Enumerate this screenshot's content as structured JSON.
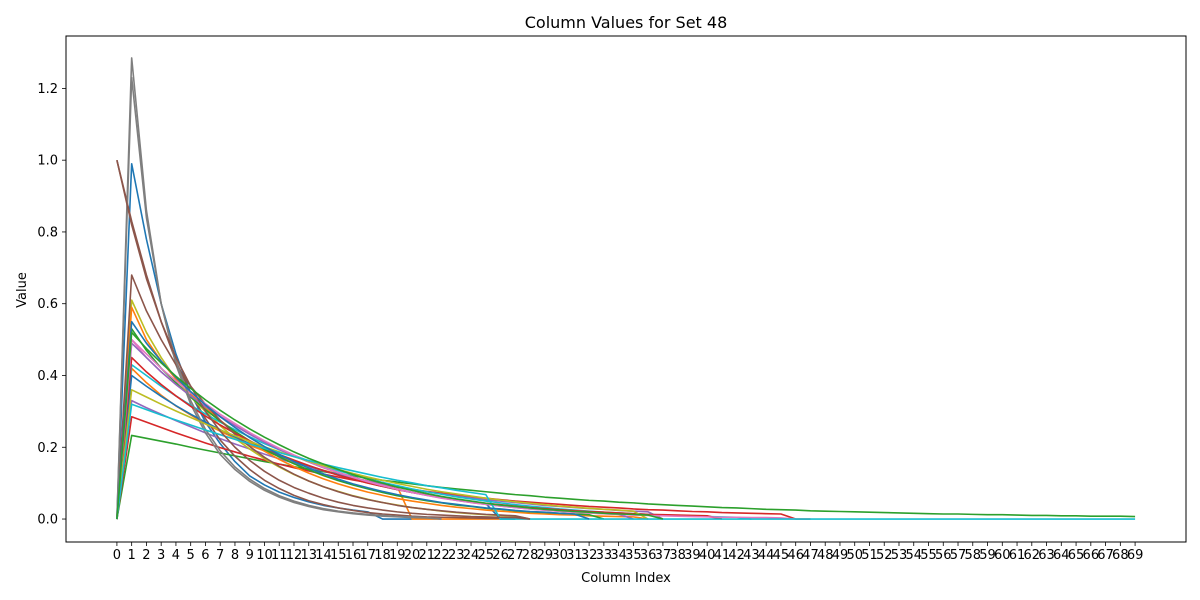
{
  "chart_data": {
    "type": "line",
    "title": "Column Values for Set 48",
    "xlabel": "Column Index",
    "ylabel": "Value",
    "xlim": [
      -3.45,
      72.45
    ],
    "ylim": [
      -0.064,
      1.346
    ],
    "grid": false,
    "legend": "none",
    "x_ticks": [
      0,
      1,
      2,
      3,
      4,
      5,
      6,
      7,
      8,
      9,
      10,
      11,
      12,
      13,
      14,
      15,
      16,
      17,
      18,
      19,
      20,
      21,
      22,
      23,
      24,
      25,
      26,
      27,
      28,
      29,
      30,
      31,
      32,
      33,
      34,
      35,
      36,
      37,
      38,
      39,
      40,
      41,
      42,
      43,
      44,
      45,
      46,
      47,
      48,
      49,
      50,
      51,
      52,
      53,
      54,
      55,
      56,
      57,
      58,
      59,
      60,
      61,
      62,
      63,
      64,
      65,
      66,
      67,
      68,
      69
    ],
    "y_ticks": [
      0.0,
      0.2,
      0.4,
      0.6,
      0.8,
      1.0,
      1.2
    ],
    "y_tick_labels": [
      "0.0",
      "0.2",
      "0.4",
      "0.6",
      "0.8",
      "1.0",
      "1.2"
    ],
    "series": [
      {
        "color": "#1f77b4",
        "values": [
          0.0,
          0.99,
          0.78,
          0.6,
          0.46,
          0.35,
          0.27,
          0.21,
          0.16,
          0.12,
          0.095,
          0.075,
          0.06,
          0.048,
          0.038,
          0.031,
          0.025,
          0.02,
          0.0,
          0.0,
          0.0
        ]
      },
      {
        "color": "#ff7f0e",
        "values": [
          0.0,
          0.42,
          0.38,
          0.345,
          0.315,
          0.29,
          0.265,
          0.245,
          0.225,
          0.205,
          0.19,
          0.175,
          0.16,
          0.148,
          0.136,
          0.125,
          0.115,
          0.106,
          0.098,
          0.09,
          0.0,
          0.0,
          0.0,
          0.0,
          0.0,
          0.0,
          0.0
        ]
      },
      {
        "color": "#2ca02c",
        "values": [
          0.0,
          0.233,
          0.225,
          0.217,
          0.209,
          0.2,
          0.192,
          0.184,
          0.176,
          0.168,
          0.16,
          0.153,
          0.146,
          0.139,
          0.132,
          0.126,
          0.12,
          0.114,
          0.108,
          0.103,
          0.098,
          0.093,
          0.088,
          0.084,
          0.08,
          0.076,
          0.072,
          0.068,
          0.065,
          0.061,
          0.058,
          0.055,
          0.052,
          0.05,
          0.047,
          0.045,
          0.042,
          0.04,
          0.038,
          0.036,
          0.034,
          0.032,
          0.031,
          0.029,
          0.027,
          0.026,
          0.025,
          0.023,
          0.022,
          0.021,
          0.02,
          0.019,
          0.018,
          0.017,
          0.016,
          0.015,
          0.014,
          0.014,
          0.013,
          0.012,
          0.012,
          0.011,
          0.01,
          0.01,
          0.009,
          0.009,
          0.008,
          0.008,
          0.008,
          0.007
        ]
      },
      {
        "color": "#d62728",
        "values": [
          0.0,
          0.285,
          0.27,
          0.255,
          0.24,
          0.226,
          0.212,
          0.199,
          0.187,
          0.175,
          0.164,
          0.153,
          0.143,
          0.134,
          0.125,
          0.117,
          0.109,
          0.102,
          0.095,
          0.089,
          0.083,
          0.077,
          0.072,
          0.067,
          0.062,
          0.058,
          0.054,
          0.05,
          0.047,
          0.044,
          0.041,
          0.038,
          0.035,
          0.033,
          0.031,
          0.028,
          0.026,
          0.025,
          0.023,
          0.021,
          0.02,
          0.018,
          0.017,
          0.016,
          0.015,
          0.014,
          0.0,
          0.0
        ]
      },
      {
        "color": "#9467bd",
        "values": [
          0.0,
          0.33,
          0.31,
          0.292,
          0.274,
          0.257,
          0.24,
          0.224,
          0.209,
          0.195,
          0.181,
          0.168,
          0.156,
          0.145,
          0.134,
          0.124,
          0.115,
          0.106,
          0.098,
          0.09,
          0.083,
          0.076,
          0.07,
          0.064,
          0.059,
          0.054,
          0.05,
          0.046,
          0.042,
          0.038,
          0.035,
          0.032,
          0.029,
          0.027,
          0.024,
          0.022,
          0.02,
          0.0
        ]
      },
      {
        "color": "#8c564b",
        "values": [
          1.0,
          0.83,
          0.68,
          0.55,
          0.44,
          0.35,
          0.28,
          0.22,
          0.175,
          0.138,
          0.108,
          0.085,
          0.066,
          0.051,
          0.04,
          0.031,
          0.024,
          0.018,
          0.014,
          0.011,
          0.008,
          0.006,
          0.005,
          0.004,
          0.003,
          0.002,
          0.002,
          0.0
        ]
      },
      {
        "color": "#e377c2",
        "values": [
          0.0,
          0.5,
          0.45,
          0.41,
          0.375,
          0.343,
          0.314,
          0.287,
          0.262,
          0.239,
          0.217,
          0.197,
          0.178,
          0.161,
          0.145,
          0.13,
          0.117,
          0.105,
          0.094,
          0.084,
          0.075,
          0.067,
          0.059,
          0.053,
          0.047,
          0.042,
          0.037,
          0.033,
          0.029,
          0.026,
          0.023,
          0.02,
          0.018,
          0.016,
          0.014,
          0.012,
          0.011,
          0.01,
          0.009,
          0.008,
          0.007,
          0.0
        ]
      },
      {
        "color": "#7f7f7f",
        "values": [
          0.0,
          1.285,
          0.86,
          0.6,
          0.43,
          0.32,
          0.24,
          0.18,
          0.138,
          0.105,
          0.08,
          0.061,
          0.046,
          0.035,
          0.026,
          0.02,
          0.015,
          0.011,
          0.008,
          0.006,
          0.004,
          0.003,
          0.0
        ]
      },
      {
        "color": "#bcbd22",
        "values": [
          0.0,
          0.61,
          0.52,
          0.45,
          0.39,
          0.34,
          0.3,
          0.26,
          0.225,
          0.195,
          0.168,
          0.145,
          0.124,
          0.106,
          0.09,
          0.077,
          0.065,
          0.055,
          0.046,
          0.039,
          0.032,
          0.027,
          0.022,
          0.018,
          0.015,
          0.012,
          0.01,
          0.008,
          0.0
        ]
      },
      {
        "color": "#17becf",
        "values": [
          0.0,
          0.43,
          0.4,
          0.37,
          0.343,
          0.317,
          0.293,
          0.27,
          0.249,
          0.229,
          0.21,
          0.193,
          0.177,
          0.162,
          0.148,
          0.135,
          0.123,
          0.112,
          0.102,
          0.093,
          0.084,
          0.076,
          0.069,
          0.062,
          0.056,
          0.05,
          0.045,
          0.04,
          0.036,
          0.032,
          0.028,
          0.025,
          0.022,
          0.019,
          0.017,
          0.015,
          0.013,
          0.011,
          0.01,
          0.008,
          0.007,
          0.006,
          0.005,
          0.0
        ]
      },
      {
        "color": "#1f77b4",
        "values": [
          0.0,
          0.4,
          0.37,
          0.342,
          0.316,
          0.292,
          0.27,
          0.249,
          0.229,
          0.21,
          0.193,
          0.177,
          0.162,
          0.148,
          0.135,
          0.123,
          0.111,
          0.101,
          0.091,
          0.082,
          0.074,
          0.067,
          0.06,
          0.054,
          0.048,
          0.043,
          0.0,
          0.0
        ]
      },
      {
        "color": "#ff7f0e",
        "values": [
          0.0,
          0.59,
          0.5,
          0.44,
          0.39,
          0.35,
          0.31,
          0.275,
          0.243,
          0.214,
          0.189,
          0.166,
          0.146,
          0.128,
          0.112,
          0.098,
          0.086,
          0.075,
          0.066,
          0.057,
          0.05,
          0.044,
          0.038,
          0.033,
          0.029,
          0.025,
          0.022,
          0.019,
          0.016,
          0.014,
          0.012,
          0.011,
          0.009,
          0.008,
          0.007,
          0.006,
          0.0
        ]
      },
      {
        "color": "#2ca02c",
        "values": [
          0.0,
          0.53,
          0.47,
          0.42,
          0.38,
          0.34,
          0.305,
          0.273,
          0.244,
          0.218,
          0.194,
          0.173,
          0.154,
          0.137,
          0.121,
          0.107,
          0.095,
          0.084,
          0.074,
          0.065,
          0.058,
          0.051,
          0.045,
          0.039,
          0.035,
          0.03,
          0.027,
          0.023,
          0.02,
          0.018,
          0.016,
          0.014,
          0.012,
          0.0
        ]
      },
      {
        "color": "#d62728",
        "values": [
          0.0,
          0.45,
          0.41,
          0.375,
          0.343,
          0.314,
          0.287,
          0.262,
          0.239,
          0.218,
          0.198,
          0.18,
          0.164,
          0.149,
          0.135,
          0.122,
          0.111,
          0.1,
          0.091,
          0.082,
          0.074,
          0.067,
          0.06,
          0.054,
          0.049,
          0.044,
          0.04,
          0.036,
          0.032,
          0.029,
          0.026,
          0.023,
          0.021,
          0.019,
          0.017,
          0.015,
          0.013,
          0.012,
          0.011,
          0.01,
          0.009,
          0.0
        ]
      },
      {
        "color": "#9467bd",
        "values": [
          0.0,
          0.49,
          0.45,
          0.41,
          0.375,
          0.343,
          0.313,
          0.285,
          0.26,
          0.236,
          0.214,
          0.194,
          0.176,
          0.159,
          0.143,
          0.129,
          0.116,
          0.104,
          0.093,
          0.083,
          0.074,
          0.066,
          0.059,
          0.052,
          0.046,
          0.041,
          0.036,
          0.032,
          0.028,
          0.025,
          0.022,
          0.019,
          0.017,
          0.015,
          0.013,
          0.0
        ]
      },
      {
        "color": "#8c564b",
        "values": [
          0.0,
          0.68,
          0.58,
          0.5,
          0.43,
          0.37,
          0.32,
          0.275,
          0.236,
          0.202,
          0.172,
          0.147,
          0.125,
          0.106,
          0.09,
          0.076,
          0.064,
          0.054,
          0.046,
          0.038,
          0.032,
          0.027,
          0.023,
          0.019,
          0.016,
          0.013,
          0.011,
          0.009,
          0.0
        ]
      },
      {
        "color": "#e377c2",
        "values": [
          0.0,
          0.5,
          0.46,
          0.42,
          0.385,
          0.352,
          0.321,
          0.292,
          0.266,
          0.241,
          0.218,
          0.197,
          0.178,
          0.16,
          0.144,
          0.129,
          0.116,
          0.104,
          0.093,
          0.083,
          0.074,
          0.066,
          0.058,
          0.052,
          0.046,
          0.041,
          0.036,
          0.032,
          0.028,
          0.025,
          0.022,
          0.019,
          0.017,
          0.015,
          0.013,
          0.011,
          0.01,
          0.009,
          0.008,
          0.007,
          0.006,
          0.005,
          0.005,
          0.004,
          0.004,
          0.003,
          0.0
        ]
      },
      {
        "color": "#7f7f7f",
        "values": [
          0.0,
          1.23,
          0.84,
          0.6,
          0.44,
          0.33,
          0.25,
          0.19,
          0.145,
          0.111,
          0.085,
          0.065,
          0.05,
          0.038,
          0.029,
          0.022,
          0.017,
          0.013,
          0.01,
          0.007,
          0.006,
          0.004,
          0.0
        ]
      },
      {
        "color": "#bcbd22",
        "values": [
          0.0,
          0.36,
          0.34,
          0.32,
          0.301,
          0.283,
          0.265,
          0.248,
          0.232,
          0.216,
          0.201,
          0.187,
          0.174,
          0.161,
          0.149,
          0.138,
          0.127,
          0.117,
          0.108,
          0.099,
          0.091,
          0.083,
          0.076,
          0.07,
          0.064,
          0.058,
          0.053,
          0.048,
          0.044,
          0.04,
          0.036,
          0.033,
          0.03,
          0.027,
          0.025,
          0.022,
          0.0
        ]
      },
      {
        "color": "#17becf",
        "values": [
          0.0,
          0.32,
          0.305,
          0.29,
          0.276,
          0.262,
          0.248,
          0.235,
          0.222,
          0.209,
          0.197,
          0.185,
          0.174,
          0.163,
          0.153,
          0.143,
          0.134,
          0.125,
          0.116,
          0.108,
          0.101,
          0.093,
          0.087,
          0.08,
          0.074,
          0.068,
          0.0,
          0.0,
          0.0,
          0.0,
          0.0,
          0.0,
          0.0,
          0.0,
          0.0,
          0.0,
          0.0,
          0.0,
          0.0,
          0.0,
          0.0,
          0.0,
          0.0,
          0.0,
          0.0,
          0.0,
          0.0,
          0.0,
          0.0,
          0.0,
          0.0,
          0.0,
          0.0,
          0.0,
          0.0,
          0.0,
          0.0,
          0.0,
          0.0,
          0.0,
          0.0,
          0.0,
          0.0,
          0.0,
          0.0,
          0.0,
          0.0,
          0.0,
          0.0,
          0.0
        ]
      },
      {
        "color": "#8c564b",
        "values": [
          1.0,
          0.82,
          0.67,
          0.55,
          0.45,
          0.37,
          0.3,
          0.245,
          0.2,
          0.163,
          0.133,
          0.108,
          0.088,
          0.072,
          0.058,
          0.047,
          0.038,
          0.031,
          0.025,
          0.02,
          0.016,
          0.013,
          0.011,
          0.009,
          0.007,
          0.006,
          0.005,
          0.004,
          0.0
        ]
      },
      {
        "color": "#1f77b4",
        "values": [
          0.0,
          0.55,
          0.49,
          0.44,
          0.395,
          0.355,
          0.318,
          0.285,
          0.255,
          0.227,
          0.202,
          0.18,
          0.16,
          0.142,
          0.126,
          0.111,
          0.098,
          0.087,
          0.077,
          0.068,
          0.06,
          0.053,
          0.046,
          0.041,
          0.036,
          0.031,
          0.028,
          0.024,
          0.021,
          0.019,
          0.016,
          0.014,
          0.0
        ]
      },
      {
        "color": "#2ca02c",
        "values": [
          0.0,
          0.52,
          0.475,
          0.435,
          0.398,
          0.364,
          0.332,
          0.303,
          0.276,
          0.251,
          0.228,
          0.207,
          0.187,
          0.169,
          0.153,
          0.138,
          0.124,
          0.111,
          0.1,
          0.089,
          0.08,
          0.071,
          0.063,
          0.056,
          0.05,
          0.044,
          0.039,
          0.035,
          0.031,
          0.027,
          0.024,
          0.021,
          0.019,
          0.016,
          0.014,
          0.013,
          0.011,
          0.0
        ]
      }
    ]
  }
}
